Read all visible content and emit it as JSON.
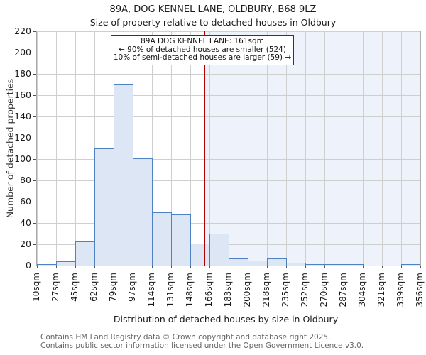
{
  "title": {
    "line1": "89A, DOG KENNEL LANE, OLDBURY, B68 9LZ",
    "line2": "Size of property relative to detached houses in Oldbury"
  },
  "annotation": {
    "line1": "89A DOG KENNEL LANE: 161sqm",
    "line2": "← 90% of detached houses are smaller (524)",
    "line3": "10% of semi-detached houses are larger (59) →"
  },
  "y_axis": {
    "label": "Number of detached properties",
    "ticks": [
      0,
      20,
      40,
      60,
      80,
      100,
      120,
      140,
      160,
      180,
      200,
      220
    ]
  },
  "x_axis": {
    "label": "Distribution of detached houses by size in Oldbury",
    "tick_labels": [
      "10sqm",
      "27sqm",
      "45sqm",
      "62sqm",
      "79sqm",
      "97sqm",
      "114sqm",
      "131sqm",
      "148sqm",
      "166sqm",
      "183sqm",
      "200sqm",
      "218sqm",
      "235sqm",
      "252sqm",
      "270sqm",
      "287sqm",
      "304sqm",
      "321sqm",
      "339sqm",
      "356sqm"
    ]
  },
  "chart_data": {
    "type": "bar",
    "title": "89A, DOG KENNEL LANE, OLDBURY, B68 9LZ — Size of property relative to detached houses in Oldbury",
    "xlabel": "Distribution of detached houses by size in Oldbury",
    "ylabel": "Number of detached properties",
    "ylim": [
      0,
      220
    ],
    "grid": true,
    "bin_edges_sqm": [
      10,
      27,
      45,
      62,
      79,
      97,
      114,
      131,
      148,
      166,
      183,
      200,
      218,
      235,
      252,
      270,
      287,
      304,
      321,
      339,
      356
    ],
    "categories": [
      "10-27",
      "27-45",
      "45-62",
      "62-79",
      "79-97",
      "97-114",
      "114-131",
      "131-148",
      "148-166",
      "166-183",
      "183-200",
      "200-218",
      "218-235",
      "235-252",
      "252-270",
      "270-287",
      "287-304",
      "304-321",
      "321-339",
      "339-356"
    ],
    "values": [
      1,
      4,
      23,
      110,
      170,
      101,
      50,
      48,
      21,
      30,
      7,
      5,
      7,
      3,
      1,
      1,
      1,
      0,
      0,
      1
    ],
    "marker": {
      "value_sqm": 161,
      "label": "89A DOG KENNEL LANE: 161sqm",
      "smaller_pct": "90%",
      "smaller_count": 524,
      "larger_pct": "10%",
      "larger_count": 59
    }
  },
  "footer": {
    "line1": "Contains HM Land Registry data © Crown copyright and database right 2025.",
    "line2": "Contains public sector information licensed under the Open Government Licence v3.0."
  },
  "colors": {
    "bar_fill": "#dce6f5",
    "bar_edge": "#4e82c4",
    "marker_line": "#b40000",
    "annotation_border": "#b40000",
    "shade_right_of_marker": "#eef2fb",
    "grid": "#cfcfcf"
  }
}
